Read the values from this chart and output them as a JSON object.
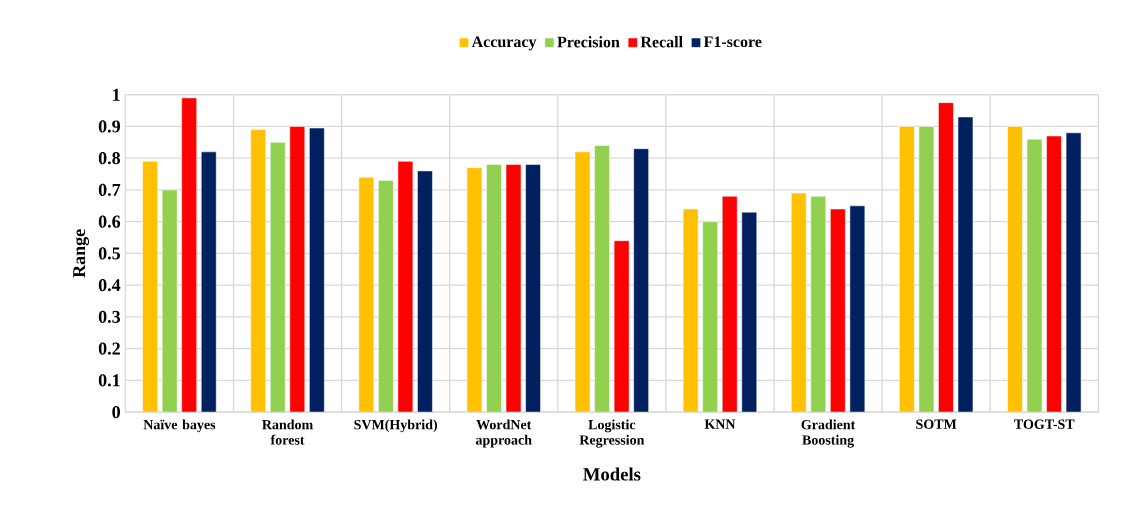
{
  "chart_data": {
    "type": "bar",
    "xlabel": "Models",
    "ylabel": "Range",
    "categories": [
      "Naïve bayes",
      "Random forest",
      "SVM(Hybrid)",
      "WordNet approach",
      "Logistic Regression",
      "KNN",
      "Gradient Boosting",
      "SOTM",
      "TOGT-ST"
    ],
    "series": [
      {
        "name": "Accuracy",
        "color": "#ffc000",
        "values": [
          0.79,
          0.89,
          0.74,
          0.77,
          0.82,
          0.64,
          0.69,
          0.9,
          0.9
        ]
      },
      {
        "name": "Precision",
        "color": "#92d050",
        "values": [
          0.7,
          0.85,
          0.73,
          0.78,
          0.84,
          0.6,
          0.68,
          0.9,
          0.86
        ]
      },
      {
        "name": "Recall",
        "color": "#ff0000",
        "values": [
          0.99,
          0.9,
          0.79,
          0.78,
          0.54,
          0.68,
          0.64,
          0.975,
          0.87
        ]
      },
      {
        "name": "F1-score",
        "color": "#002060",
        "values": [
          0.82,
          0.895,
          0.76,
          0.78,
          0.83,
          0.63,
          0.65,
          0.93,
          0.88
        ]
      }
    ],
    "ylim": [
      0,
      1
    ],
    "yticks": [
      0,
      0.1,
      0.2,
      0.3,
      0.4,
      0.5,
      0.6,
      0.7,
      0.8,
      0.9,
      1
    ],
    "grid": true,
    "legend": "top"
  }
}
